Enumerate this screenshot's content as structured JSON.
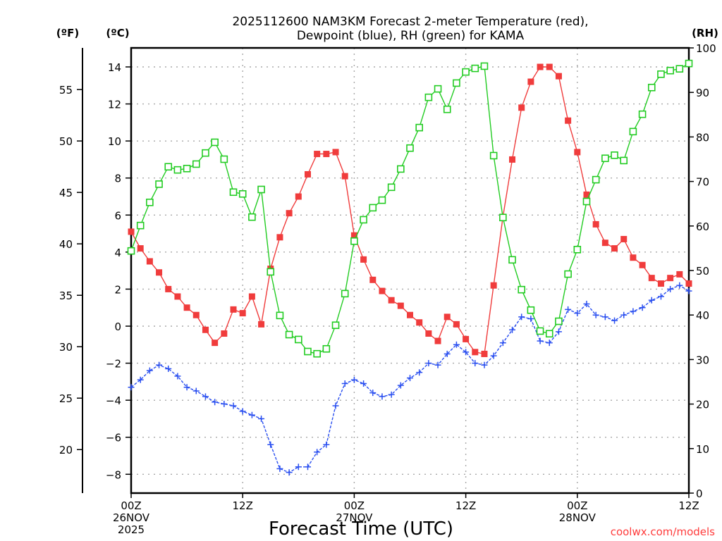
{
  "chart_data": {
    "type": "line",
    "title": "2025112600 NAM3KM Forecast 2-meter Temperature (red),",
    "subtitle": "Dewpoint (blue), RH (green) for KAMA",
    "xlabel": "Forecast Time (UTC)",
    "left_axis_f_label": "(ºF)",
    "left_axis_c_label": "(ºC)",
    "right_axis_label": "(RH)",
    "credit": "coolwx.com/models",
    "x_unit": "forecast hour",
    "x": [
      0,
      1,
      2,
      3,
      4,
      5,
      6,
      7,
      8,
      9,
      10,
      11,
      12,
      13,
      14,
      15,
      16,
      17,
      18,
      19,
      20,
      21,
      22,
      23,
      24,
      25,
      26,
      27,
      28,
      29,
      30,
      31,
      32,
      33,
      34,
      35,
      36,
      37,
      38,
      39,
      40,
      41,
      42,
      43,
      44,
      45,
      46,
      47,
      48,
      49,
      50,
      51,
      52,
      53,
      54,
      55,
      56,
      57,
      58,
      59,
      60
    ],
    "xlim": [
      0,
      60
    ],
    "x_ticks": [
      {
        "hour": 0,
        "lines": [
          "00Z",
          "26NOV",
          "2025"
        ]
      },
      {
        "hour": 12,
        "lines": [
          "12Z"
        ]
      },
      {
        "hour": 24,
        "lines": [
          "00Z",
          "27NOV"
        ]
      },
      {
        "hour": 36,
        "lines": [
          "12Z"
        ]
      },
      {
        "hour": 48,
        "lines": [
          "00Z",
          "28NOV"
        ]
      },
      {
        "hour": 60,
        "lines": [
          "12Z"
        ]
      }
    ],
    "c_ylim": [
      -9,
      15
    ],
    "c_ticks": [
      "14",
      "12",
      "10",
      "8",
      "6",
      "4",
      "2",
      "0",
      "−2",
      "−4",
      "−6",
      "−8"
    ],
    "c_tick_values": [
      14,
      12,
      10,
      8,
      6,
      4,
      2,
      0,
      -2,
      -4,
      -6,
      -8
    ],
    "f_ticks": [
      "55",
      "50",
      "45",
      "40",
      "35",
      "30",
      "25",
      "20"
    ],
    "f_tick_values": [
      55,
      50,
      45,
      40,
      35,
      30,
      25,
      20
    ],
    "rh_ylim": [
      0,
      100
    ],
    "rh_ticks": [
      "100",
      "90",
      "80",
      "70",
      "60",
      "50",
      "40",
      "30",
      "20",
      "10",
      "0"
    ],
    "rh_tick_values": [
      100,
      90,
      80,
      70,
      60,
      50,
      40,
      30,
      20,
      10,
      0
    ],
    "grid": true,
    "series": [
      {
        "name": "Temperature",
        "axis": "celsius",
        "color": "#f03c3c",
        "marker": "filled-square",
        "values": [
          5.1,
          4.2,
          3.5,
          2.9,
          2.0,
          1.6,
          1.0,
          0.6,
          -0.2,
          -0.9,
          -0.4,
          0.9,
          0.7,
          1.6,
          0.1,
          3.1,
          4.8,
          6.1,
          7.0,
          8.2,
          9.3,
          9.3,
          9.4,
          8.1,
          4.9,
          3.6,
          2.5,
          1.9,
          1.4,
          1.1,
          0.6,
          0.2,
          -0.4,
          -0.8,
          0.5,
          0.1,
          -0.7,
          -1.4,
          -1.5,
          2.2,
          5.9,
          9.0,
          11.8,
          13.2,
          14.0,
          14.0,
          13.5,
          11.1,
          9.4,
          7.1,
          5.5,
          4.5,
          4.2,
          4.7,
          3.7,
          3.3,
          2.6,
          2.3,
          2.6,
          2.8,
          2.3
        ]
      },
      {
        "name": "Dewpoint",
        "axis": "celsius",
        "color": "#2a4ff0",
        "marker": "plus",
        "values": [
          -3.3,
          -2.9,
          -2.4,
          -2.1,
          -2.3,
          -2.7,
          -3.3,
          -3.5,
          -3.8,
          -4.1,
          -4.2,
          -4.3,
          -4.6,
          -4.8,
          -5.0,
          -6.4,
          -7.7,
          -7.9,
          -7.6,
          -7.6,
          -6.8,
          -6.4,
          -4.3,
          -3.1,
          -2.9,
          -3.1,
          -3.6,
          -3.8,
          -3.7,
          -3.2,
          -2.8,
          -2.5,
          -2.0,
          -2.1,
          -1.5,
          -1.0,
          -1.4,
          -2.0,
          -2.1,
          -1.6,
          -0.9,
          -0.2,
          0.5,
          0.4,
          -0.8,
          -0.9,
          -0.3,
          0.9,
          0.7,
          1.2,
          0.6,
          0.5,
          0.3,
          0.6,
          0.8,
          1.0,
          1.4,
          1.6,
          2.0,
          2.2,
          1.9
        ]
      },
      {
        "name": "RH",
        "axis": "rh",
        "color": "#22cc22",
        "marker": "open-square",
        "values": [
          54.4,
          60.1,
          65.3,
          69.4,
          73.3,
          72.6,
          72.9,
          73.9,
          76.4,
          78.8,
          75.0,
          67.6,
          67.2,
          62.0,
          68.2,
          49.7,
          39.9,
          35.6,
          34.5,
          31.8,
          31.3,
          32.4,
          37.7,
          44.8,
          56.6,
          61.4,
          64.1,
          65.8,
          68.7,
          72.8,
          77.5,
          82.1,
          88.9,
          90.8,
          86.2,
          92.1,
          94.6,
          95.4,
          95.9,
          75.8,
          61.9,
          52.4,
          45.7,
          41.1,
          36.4,
          35.8,
          38.6,
          49.2,
          54.7,
          65.5,
          70.4,
          75.2,
          75.9,
          74.7,
          81.2,
          85.1,
          91.1,
          94.1,
          94.9,
          95.3,
          96.5
        ]
      }
    ]
  }
}
